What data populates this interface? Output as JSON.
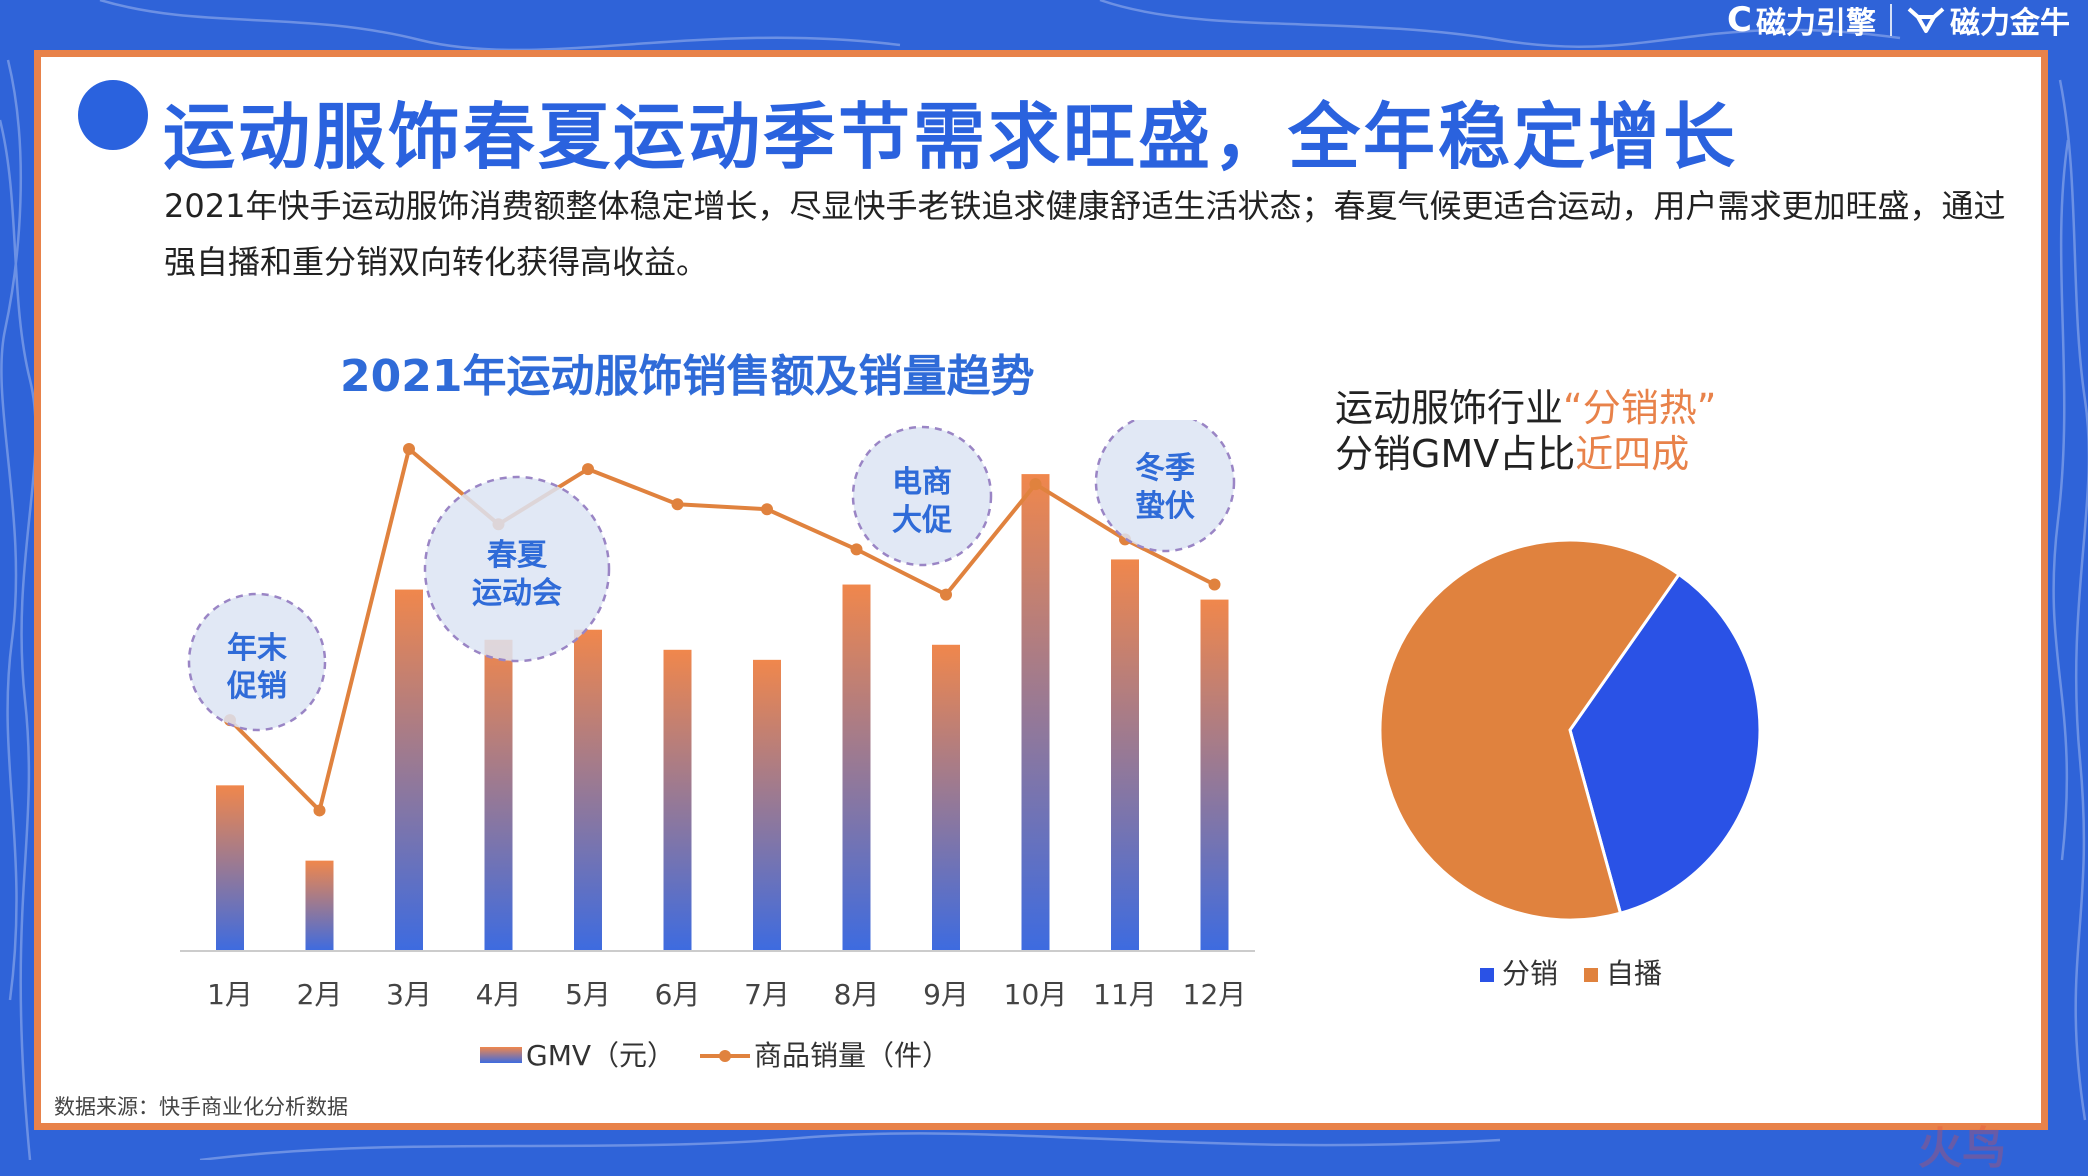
{
  "brand": {
    "left": "磁力引擎",
    "right": "磁力金牛"
  },
  "title": "运动服饰春夏运动季节需求旺盛，全年稳定增长",
  "subtitle": "2021年快手运动服饰消费额整体稳定增长，尽显快手老铁追求健康舒适生活状态；春夏气候更适合运动，用户需求更加旺盛，通过强自播和重分销双向转化获得高收益。",
  "colors": {
    "brand_blue": "#2a62de",
    "accent_orange": "#e8824a",
    "bubble_fill": "#dce4f3",
    "bubble_stroke": "#9a85c5"
  },
  "chart_data": [
    {
      "type": "bar",
      "title": "2021年运动服饰销售额及销量趋势",
      "categories": [
        "1月",
        "2月",
        "3月",
        "4月",
        "5月",
        "6月",
        "7月",
        "8月",
        "9月",
        "10月",
        "11月",
        "12月"
      ],
      "series": [
        {
          "name": "GMV（元）",
          "kind": "bar",
          "values": [
            33,
            18,
            72,
            62,
            64,
            60,
            58,
            73,
            61,
            95,
            78,
            70
          ]
        },
        {
          "name": "商品销量（件）",
          "kind": "line",
          "values": [
            46,
            28,
            100,
            85,
            96,
            89,
            88,
            80,
            71,
            93,
            82,
            73
          ]
        }
      ],
      "ylim": [
        0,
        100
      ],
      "grid": false,
      "legend_position": "bottom",
      "annotations": [
        {
          "label": [
            "年末",
            "促销"
          ],
          "month": "1月"
        },
        {
          "label": [
            "春夏",
            "运动会"
          ],
          "month": "4月"
        },
        {
          "label": [
            "电商",
            "大促"
          ],
          "month": "9月"
        },
        {
          "label": [
            "冬季",
            "蛰伏"
          ],
          "month": "12月"
        }
      ]
    },
    {
      "type": "pie",
      "title": "运动服饰行业“分销热”分销GMV占比近四成",
      "slices": [
        {
          "label": "分销",
          "value": 36,
          "color": "#2a52e6"
        },
        {
          "label": "自播",
          "value": 64,
          "color": "#e0823e"
        }
      ],
      "legend_position": "bottom"
    }
  ],
  "pie_caption": {
    "line1_prefix": "运动服饰行业",
    "line1_highlight": "“分销热”",
    "line2_prefix": "分销GMV占比",
    "line2_highlight": "近四成"
  },
  "source": "数据来源：快手商业化分析数据",
  "watermark": "火鸟"
}
